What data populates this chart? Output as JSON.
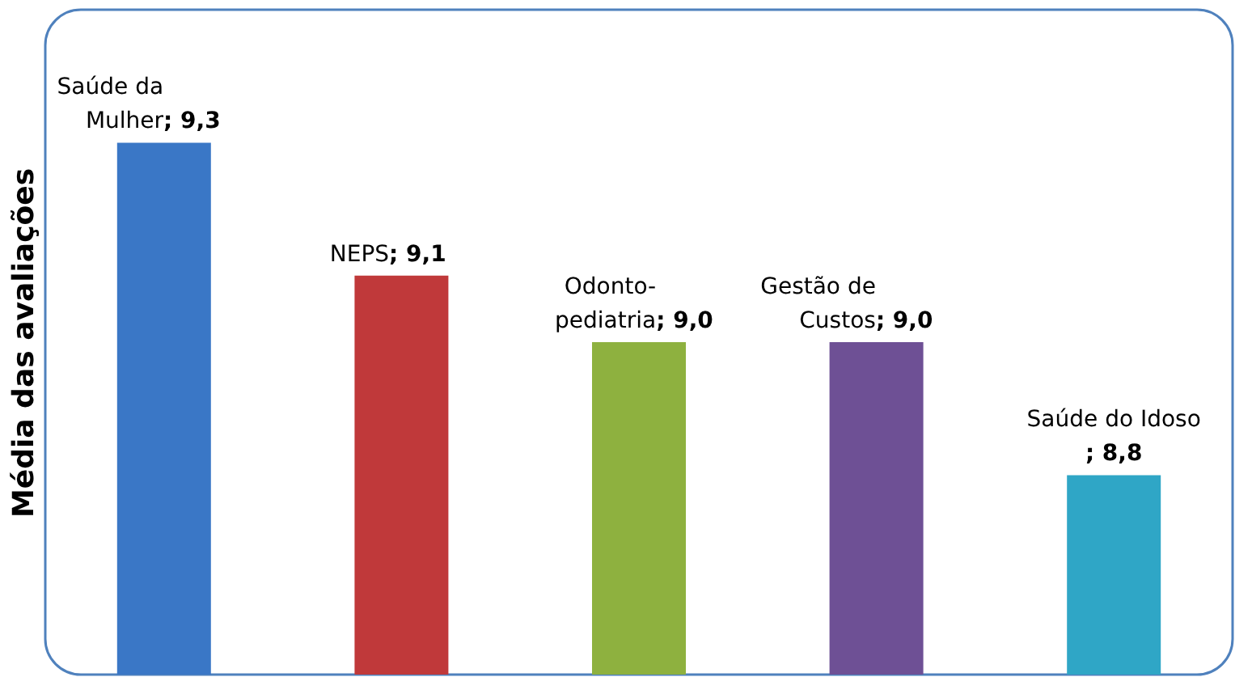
{
  "chart_data": {
    "type": "bar",
    "ylabel": "Média das avaliações",
    "categories": [
      "Saúde da Mulher",
      "NEPS",
      "Odonto-pediatria",
      "Gestão de Custos",
      "Saúde do Idoso"
    ],
    "values": [
      9.3,
      9.1,
      9.0,
      9.0,
      8.8
    ],
    "value_labels": [
      "; 9,3",
      "; 9,1",
      "; 9,0",
      "; 9,0",
      "; 8,8"
    ],
    "colors": [
      "#3a77c6",
      "#c0393a",
      "#8eb13f",
      "#6e5095",
      "#2fa6c6"
    ],
    "ylim": [
      8.5,
      9.5
    ],
    "tick_labels": false,
    "grid": false
  }
}
